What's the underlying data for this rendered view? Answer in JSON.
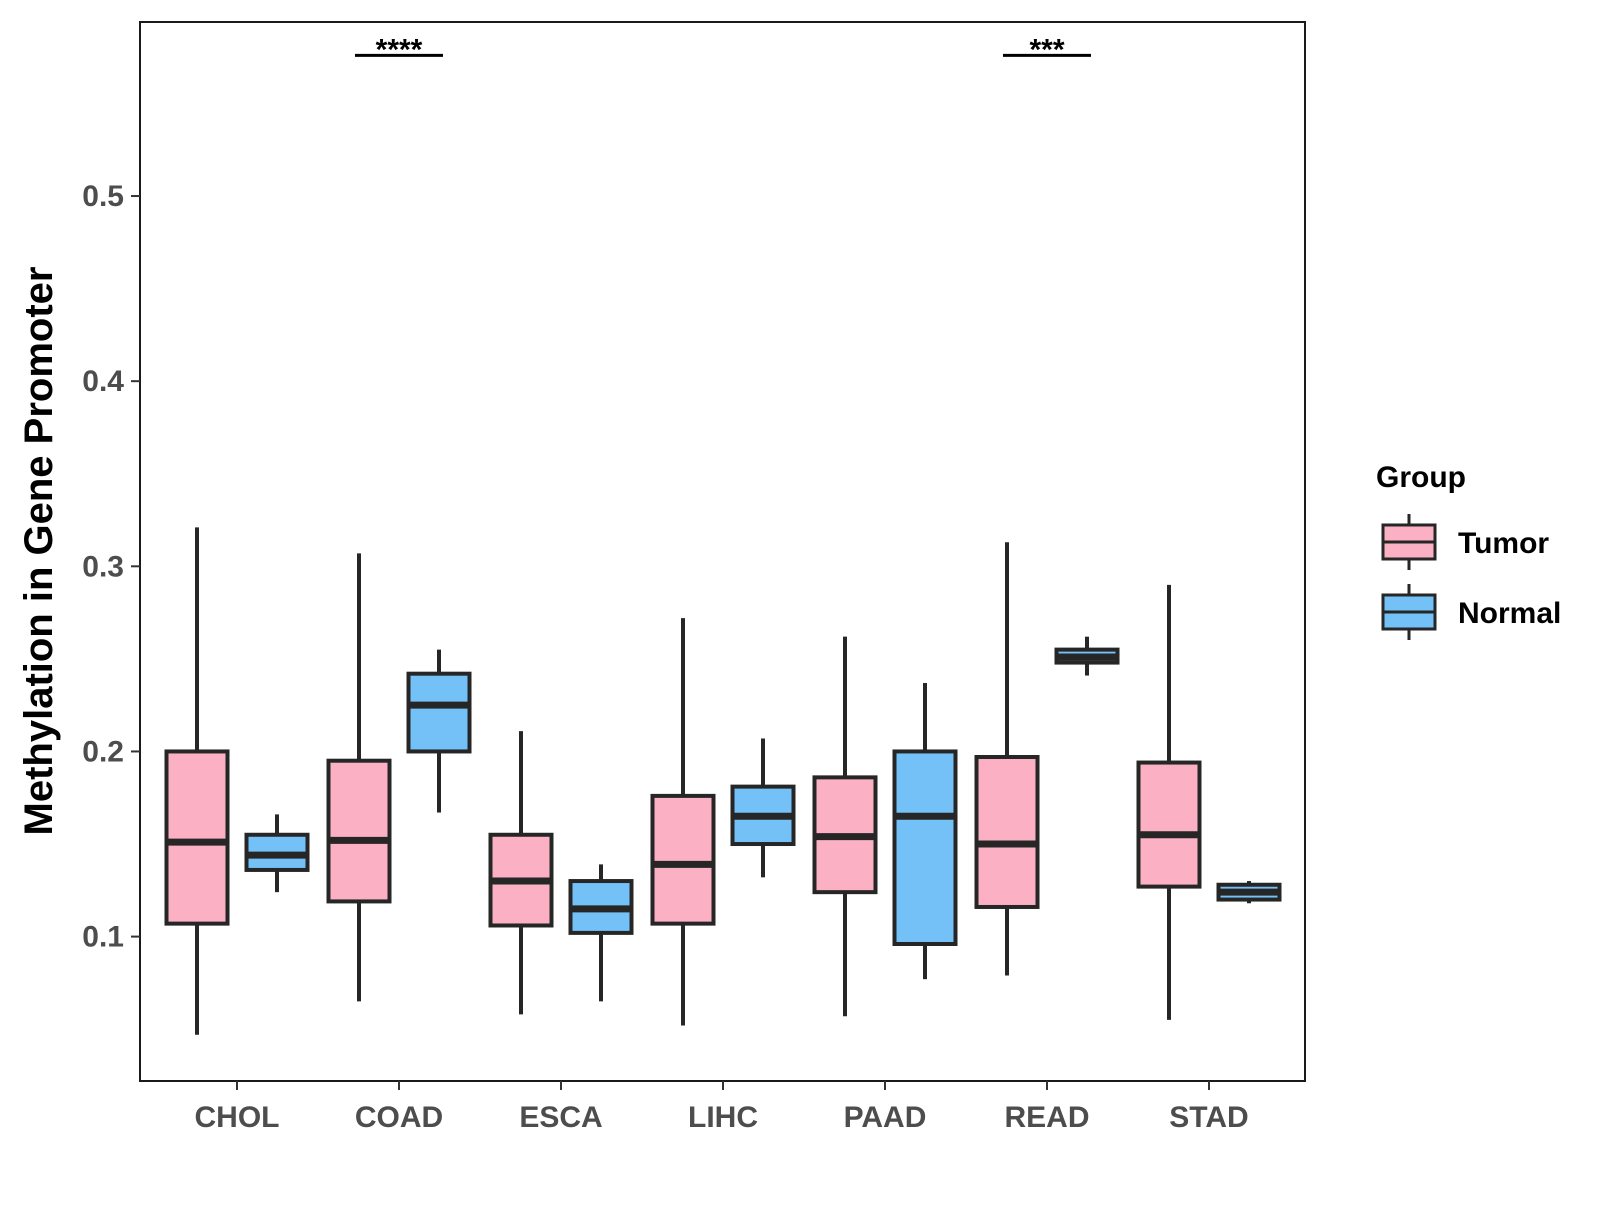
{
  "chart_data": {
    "type": "boxplot",
    "title": "",
    "xlabel": "",
    "ylabel": "Methylation in Gene Promoter",
    "ylim": [
      0.022,
      0.594
    ],
    "yticks": [
      0.1,
      0.2,
      0.3,
      0.4,
      0.5
    ],
    "ytick_labels": [
      "0.1",
      "0.2",
      "0.3",
      "0.4",
      "0.5"
    ],
    "grid": false,
    "categories": [
      "CHOL",
      "COAD",
      "ESCA",
      "LIHC",
      "PAAD",
      "READ",
      "STAD"
    ],
    "legend": {
      "title": "Group",
      "position": "right",
      "entries": [
        {
          "name": "Tumor",
          "color": "#FBB1C3"
        },
        {
          "name": "Normal",
          "color": "#74C1F7"
        }
      ]
    },
    "series": [
      {
        "name": "Tumor",
        "color": "#FBB1C3",
        "boxes": [
          {
            "min": 0.047,
            "q1": 0.107,
            "median": 0.151,
            "q3": 0.2,
            "max": 0.321
          },
          {
            "min": 0.065,
            "q1": 0.119,
            "median": 0.152,
            "q3": 0.195,
            "max": 0.307
          },
          {
            "min": 0.058,
            "q1": 0.106,
            "median": 0.13,
            "q3": 0.155,
            "max": 0.211
          },
          {
            "min": 0.052,
            "q1": 0.107,
            "median": 0.139,
            "q3": 0.176,
            "max": 0.272
          },
          {
            "min": 0.057,
            "q1": 0.124,
            "median": 0.154,
            "q3": 0.186,
            "max": 0.262
          },
          {
            "min": 0.079,
            "q1": 0.116,
            "median": 0.15,
            "q3": 0.197,
            "max": 0.313
          },
          {
            "min": 0.055,
            "q1": 0.127,
            "median": 0.155,
            "q3": 0.194,
            "max": 0.29
          }
        ]
      },
      {
        "name": "Normal",
        "color": "#74C1F7",
        "boxes": [
          {
            "min": 0.124,
            "q1": 0.136,
            "median": 0.144,
            "q3": 0.155,
            "max": 0.166
          },
          {
            "min": 0.167,
            "q1": 0.2,
            "median": 0.225,
            "q3": 0.242,
            "max": 0.255
          },
          {
            "min": 0.065,
            "q1": 0.102,
            "median": 0.115,
            "q3": 0.13,
            "max": 0.139
          },
          {
            "min": 0.132,
            "q1": 0.15,
            "median": 0.165,
            "q3": 0.181,
            "max": 0.207
          },
          {
            "min": 0.077,
            "q1": 0.096,
            "median": 0.165,
            "q3": 0.2,
            "max": 0.237
          },
          {
            "min": 0.241,
            "q1": 0.248,
            "median": 0.251,
            "q3": 0.255,
            "max": 0.262
          },
          {
            "min": 0.118,
            "q1": 0.12,
            "median": 0.124,
            "q3": 0.128,
            "max": 0.13
          }
        ]
      }
    ],
    "annotations": [
      {
        "category": "COAD",
        "label": "****",
        "y": 0.576
      },
      {
        "category": "READ",
        "label": "***",
        "y": 0.576
      }
    ]
  }
}
